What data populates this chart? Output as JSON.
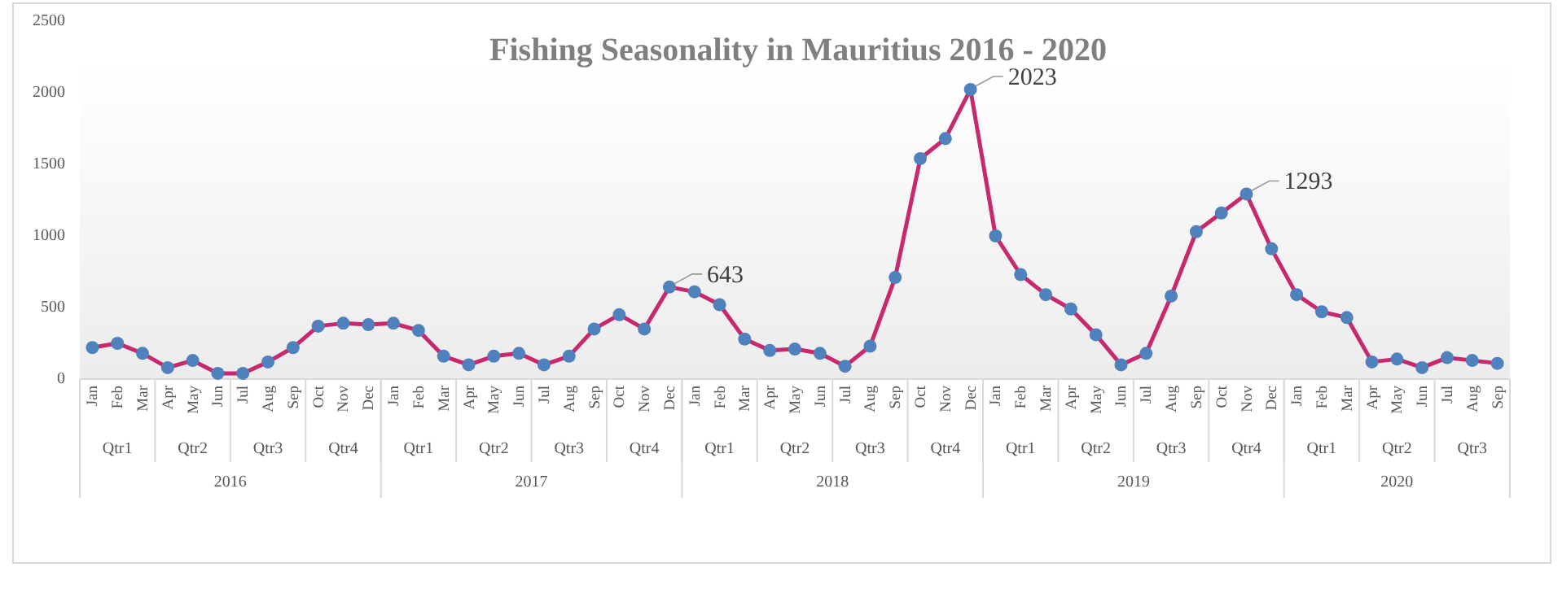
{
  "chart_data": {
    "type": "line",
    "title": "Fishing Seasonality in Mauritius 2016 - 2020",
    "categories": [
      "Jan",
      "Feb",
      "Mar",
      "Apr",
      "May",
      "Jun",
      "Jul",
      "Aug",
      "Sep",
      "Oct",
      "Nov",
      "Dec",
      "Jan",
      "Feb",
      "Mar",
      "Apr",
      "May",
      "Jun",
      "Jul",
      "Aug",
      "Sep",
      "Oct",
      "Nov",
      "Dec",
      "Jan",
      "Feb",
      "Mar",
      "Apr",
      "May",
      "Jun",
      "Jul",
      "Aug",
      "Sep",
      "Oct",
      "Nov",
      "Dec",
      "Jan",
      "Feb",
      "Mar",
      "Apr",
      "May",
      "Jun",
      "Jul",
      "Aug",
      "Sep",
      "Oct",
      "Nov",
      "Dec",
      "Jan",
      "Feb",
      "Mar",
      "Apr",
      "May",
      "Jun",
      "Jul",
      "Aug",
      "Sep"
    ],
    "annotations": [
      "Qtr1",
      "Qtr2",
      "Qtr3",
      "Qtr4",
      "Qtr1",
      "Qtr2",
      "Qtr3",
      "Qtr4",
      "Qtr1",
      "Qtr2",
      "Qtr3",
      "Qtr4",
      "Qtr1",
      "Qtr2",
      "Qtr3",
      "Qtr4",
      "Qtr1",
      "Qtr2",
      "Qtr3",
      "2016",
      "2017",
      "2018",
      "2019",
      "2020"
    ],
    "series": [
      {
        "color": "#c8286e",
        "values": [
          220,
          250,
          180,
          80,
          130,
          40,
          40,
          120,
          220,
          370,
          390,
          380,
          390,
          340,
          160,
          100,
          160,
          180,
          100,
          160,
          350,
          450,
          350,
          643,
          610,
          520,
          280,
          200,
          210,
          180,
          90,
          230,
          710,
          1540,
          1680,
          2023,
          1000,
          730,
          590,
          490,
          310,
          100,
          180,
          580,
          1030,
          1160,
          1293,
          910,
          590,
          470,
          430,
          120,
          140,
          80,
          150,
          130,
          110
        ],
        "value_labels": [
          null,
          null,
          null,
          null,
          null,
          null,
          null,
          null,
          null,
          null,
          null,
          null,
          null,
          null,
          null,
          null,
          null,
          null,
          null,
          null,
          null,
          null,
          null,
          "643",
          null,
          null,
          null,
          null,
          null,
          null,
          null,
          null,
          null,
          null,
          null,
          "2023",
          null,
          null,
          null,
          null,
          null,
          null,
          null,
          null,
          null,
          null,
          "1293",
          null,
          null,
          null,
          null,
          null,
          null,
          null,
          null,
          null,
          null
        ]
      }
    ],
    "ylim": [
      0,
      2500
    ],
    "yticks": [
      0,
      500,
      1000,
      1500,
      2000,
      2500
    ],
    "marker": "circle",
    "line_style": "solid"
  }
}
